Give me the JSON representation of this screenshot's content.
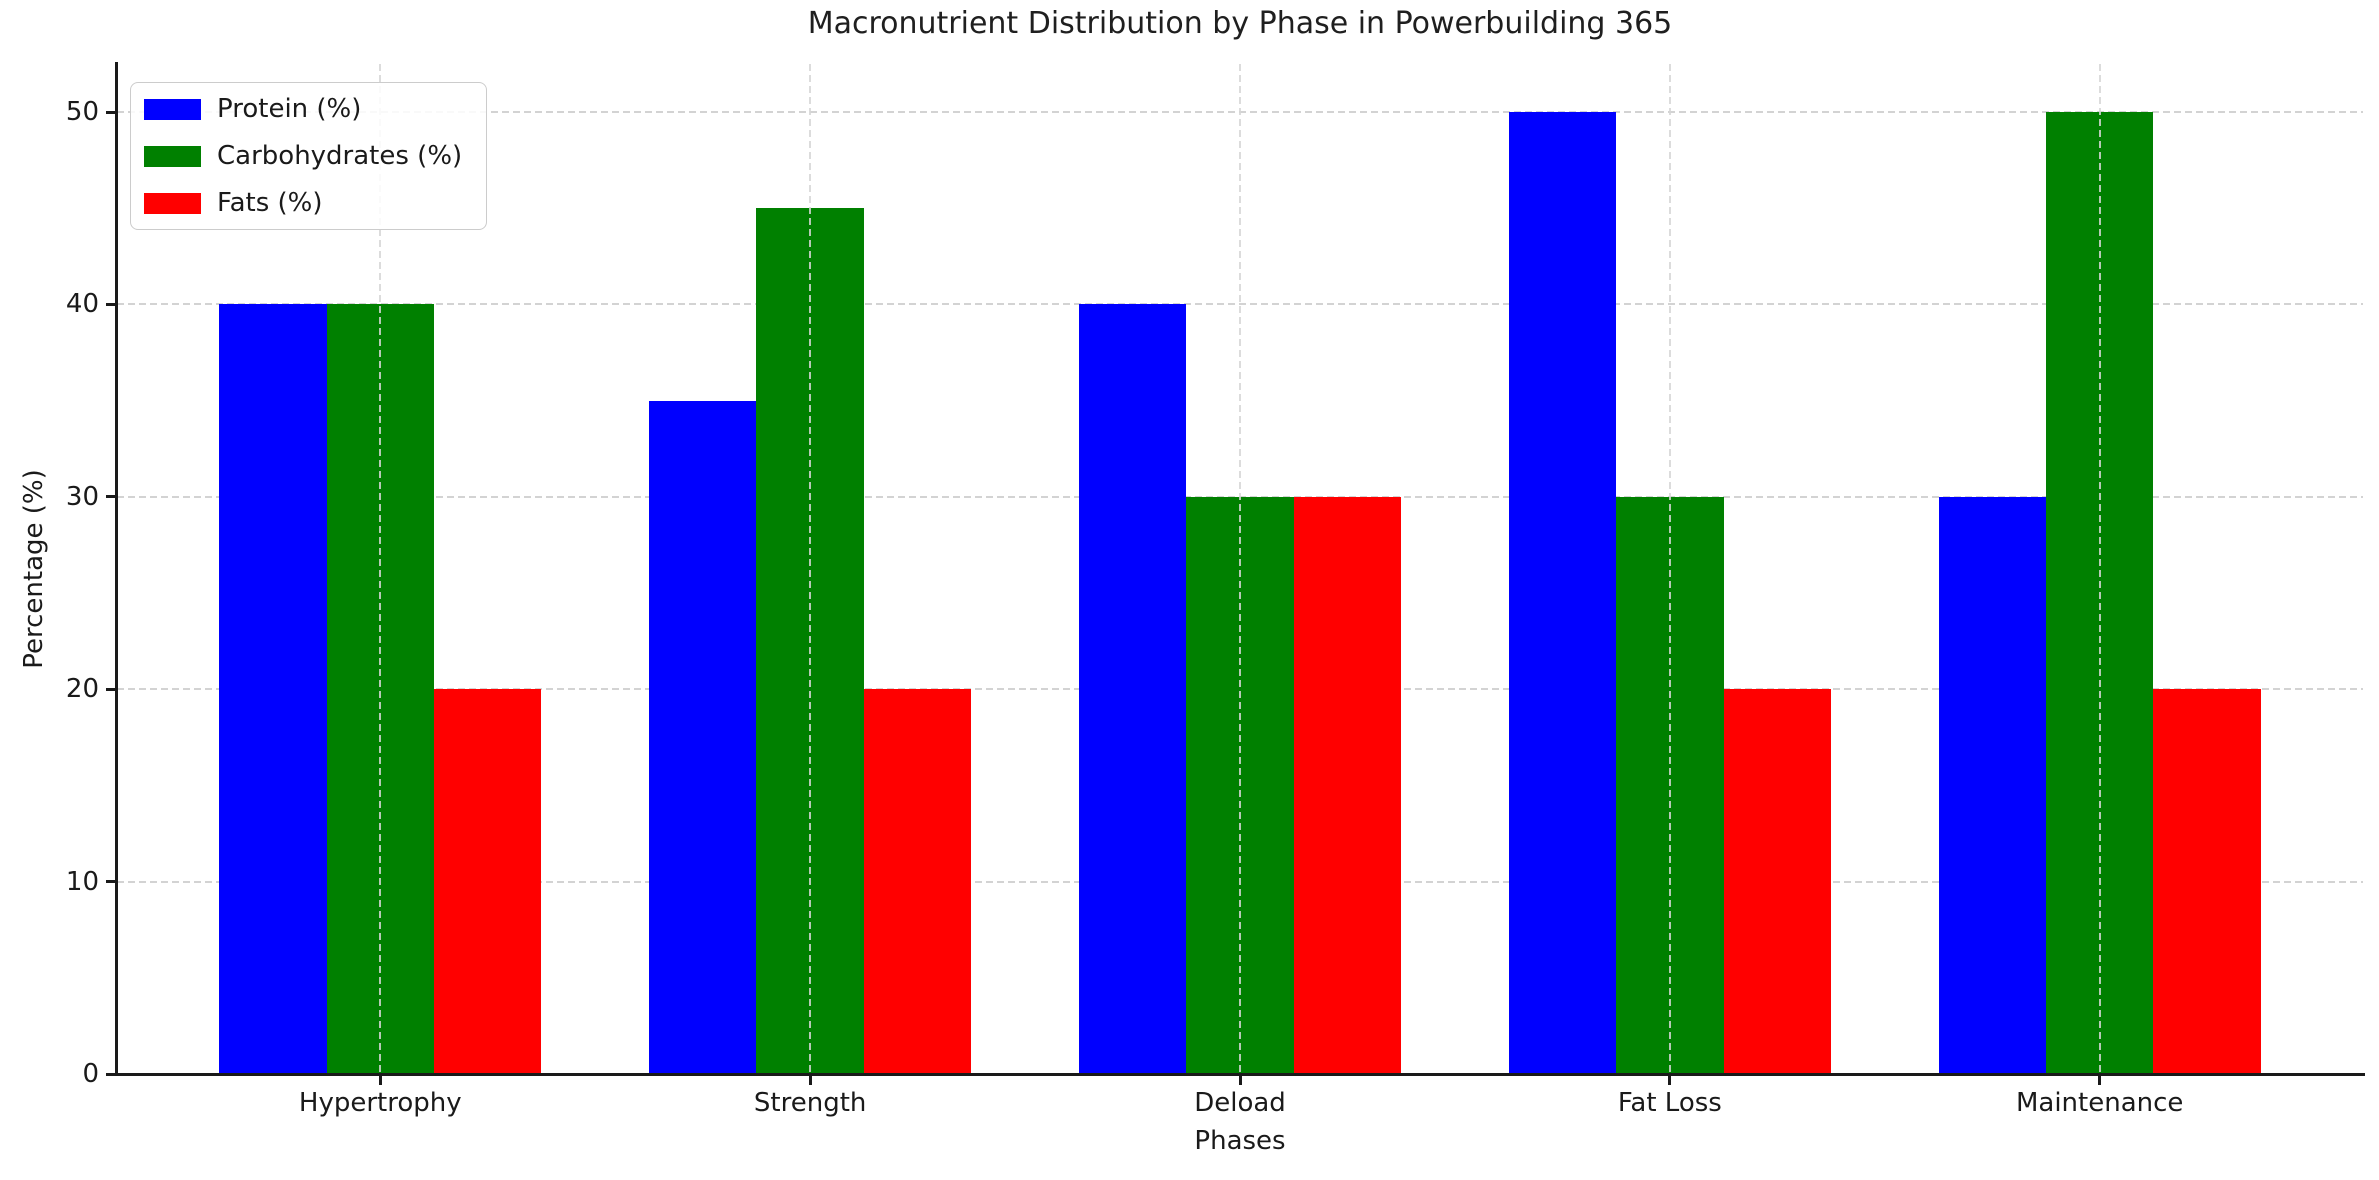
{
  "chart_data": {
    "type": "bar",
    "title": "Macronutrient Distribution by Phase in Powerbuilding 365",
    "xlabel": "Phases",
    "ylabel": "Percentage (%)",
    "categories": [
      "Hypertrophy",
      "Strength",
      "Deload",
      "Fat Loss",
      "Maintenance"
    ],
    "series": [
      {
        "name": "Protein (%)",
        "color": "#0000ff",
        "values": [
          40,
          35,
          40,
          50,
          30
        ]
      },
      {
        "name": "Carbohydrates (%)",
        "color": "#008000",
        "values": [
          40,
          45,
          30,
          30,
          50
        ]
      },
      {
        "name": "Fats (%)",
        "color": "#ff0000",
        "values": [
          20,
          20,
          30,
          20,
          20
        ]
      }
    ],
    "yticks": [
      0,
      10,
      20,
      30,
      40,
      50
    ],
    "ylim": [
      0,
      52.5
    ],
    "xlim": [
      -0.6125,
      4.6125
    ],
    "bar_width": 0.25,
    "grid": true,
    "grid_style": "dashed",
    "legend_position": "upper-left",
    "colors": {
      "grid": "#d3d3d3",
      "axis": "#1a1a1a",
      "text": "#1a1a1a",
      "legend_border": "#cccccc",
      "background": "#ffffff"
    }
  }
}
